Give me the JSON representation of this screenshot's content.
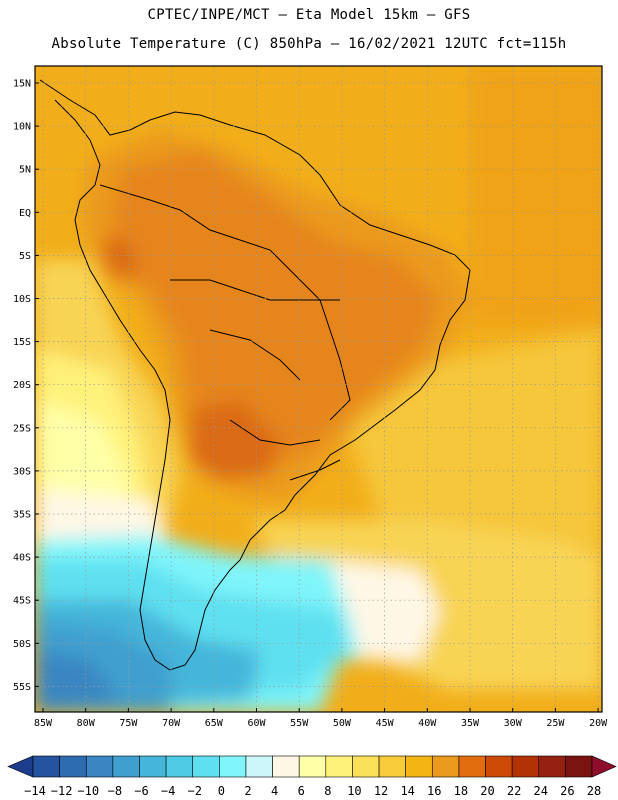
{
  "header": {
    "line1": "CPTEC/INPE/MCT –  Eta Model 15km – GFS",
    "line2": "Absolute Temperature (C) 850hPa – 16/02/2021 12UTC fct=115h"
  },
  "map": {
    "lat_labels": [
      "15N",
      "10N",
      "5N",
      "EQ",
      "5S",
      "10S",
      "15S",
      "20S",
      "25S",
      "30S",
      "35S",
      "40S",
      "45S",
      "50S",
      "55S"
    ],
    "lon_labels": [
      "85W",
      "80W",
      "75W",
      "70W",
      "65W",
      "60W",
      "55W",
      "50W",
      "45W",
      "40W",
      "35W",
      "30W",
      "25W",
      "20W"
    ]
  },
  "colorbar": {
    "labels": [
      "-14",
      "-12",
      "-10",
      "-8",
      "-6",
      "-4",
      "-2",
      "0",
      "2",
      "4",
      "6",
      "8",
      "10",
      "12",
      "14",
      "16",
      "18",
      "20",
      "22",
      "24",
      "26",
      "28"
    ],
    "colors": [
      "#1d3c8c",
      "#25539f",
      "#2d6cb0",
      "#3a86c2",
      "#3f9fcf",
      "#45b5da",
      "#4fcbe6",
      "#5fe0f0",
      "#7ff5fa",
      "#cdf6fb",
      "#fff7e6",
      "#ffffa8",
      "#fff27a",
      "#fbe05a",
      "#f7cb3a",
      "#f4b413",
      "#eb9a1e",
      "#e26d0e",
      "#cc4a05",
      "#b23205",
      "#962010",
      "#7a1410",
      "#8e0d2b"
    ]
  }
}
